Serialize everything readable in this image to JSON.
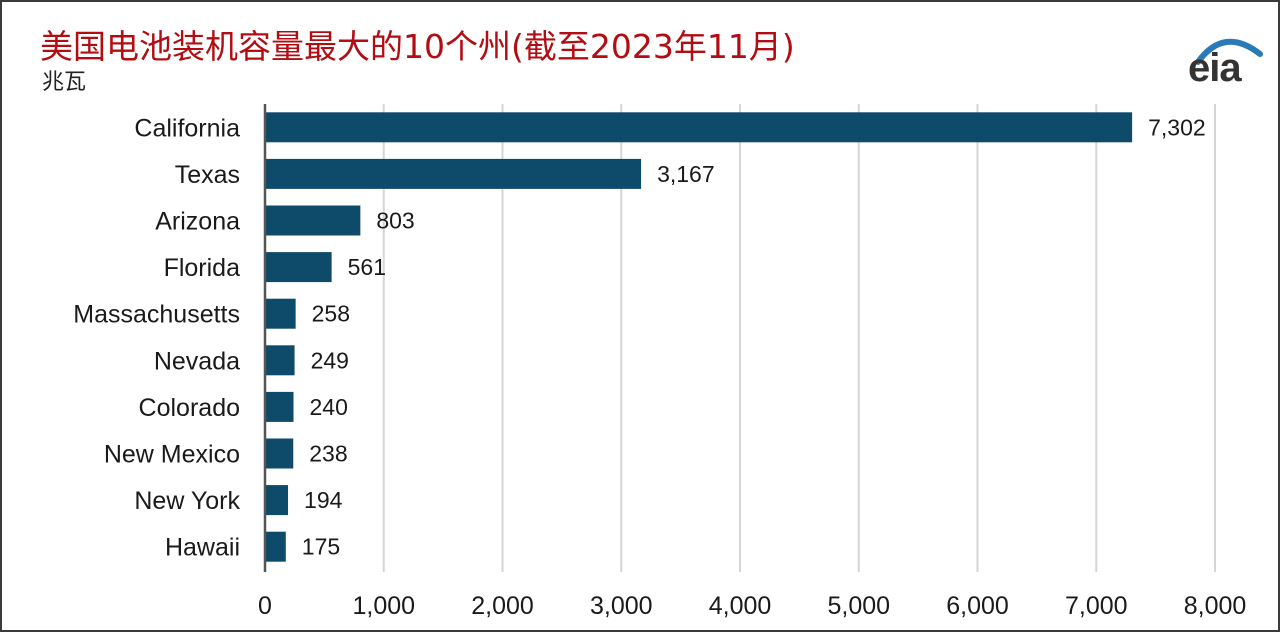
{
  "chart_data": {
    "type": "bar",
    "orientation": "horizontal",
    "title": "美国电池装机容量最大的10个州(截至2023年11月)",
    "subtitle": "兆瓦",
    "categories": [
      "California",
      "Texas",
      "Arizona",
      "Florida",
      "Massachusetts",
      "Nevada",
      "Colorado",
      "New Mexico",
      "New York",
      "Hawaii"
    ],
    "values": [
      7302,
      3167,
      803,
      561,
      258,
      249,
      240,
      238,
      194,
      175
    ],
    "value_labels": [
      "7,302",
      "3,167",
      "803",
      "561",
      "258",
      "249",
      "240",
      "238",
      "194",
      "175"
    ],
    "x_ticks": [
      0,
      1000,
      2000,
      3000,
      4000,
      5000,
      6000,
      7000,
      8000
    ],
    "x_tick_labels": [
      "0",
      "1,000",
      "2,000",
      "3,000",
      "4,000",
      "5,000",
      "6,000",
      "7,000",
      "8,000"
    ],
    "xlim": [
      0,
      8000
    ],
    "grid": true,
    "legend": "none",
    "bar_color": "#0e4b6b",
    "title_color": "#b30d14"
  },
  "logo": {
    "text": "eia",
    "arc_color": "#2a7ab8"
  }
}
